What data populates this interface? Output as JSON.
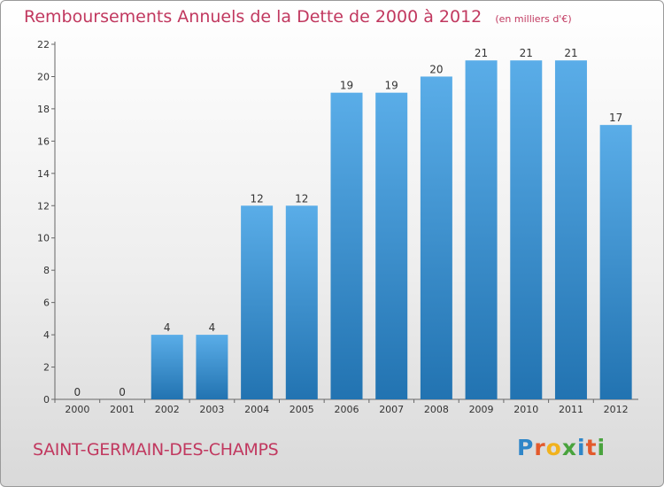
{
  "title": "Remboursements Annuels de la Dette de 2000 à 2012",
  "unit": "(en milliers d'€)",
  "commune": "SAINT-GERMAIN-DES-CHAMPS",
  "logo": {
    "text": "Proxiti",
    "letters": [
      {
        "ch": "P",
        "color": "#2f86c8"
      },
      {
        "ch": "r",
        "color": "#e35a2c"
      },
      {
        "ch": "o",
        "color": "#f1b21d"
      },
      {
        "ch": "x",
        "color": "#49a33d"
      },
      {
        "ch": "i",
        "color": "#2f86c8"
      },
      {
        "ch": "t",
        "color": "#e35a2c"
      },
      {
        "ch": "i",
        "color": "#49a33d"
      }
    ]
  },
  "colors": {
    "bar_top": "#5aade8",
    "bar_bottom": "#2273b1",
    "text": "#333333",
    "axis": "#666666",
    "accent": "#c1385f"
  },
  "chart_data": {
    "type": "bar",
    "categories": [
      "2000",
      "2001",
      "2002",
      "2003",
      "2004",
      "2005",
      "2006",
      "2007",
      "2008",
      "2009",
      "2010",
      "2011",
      "2012"
    ],
    "values": [
      0,
      0,
      4,
      4,
      12,
      12,
      19,
      19,
      20,
      21,
      21,
      21,
      17
    ],
    "ylim": [
      0,
      22
    ],
    "yticks": [
      0,
      2,
      4,
      6,
      8,
      10,
      12,
      14,
      16,
      18,
      20,
      22
    ],
    "grid": false
  }
}
